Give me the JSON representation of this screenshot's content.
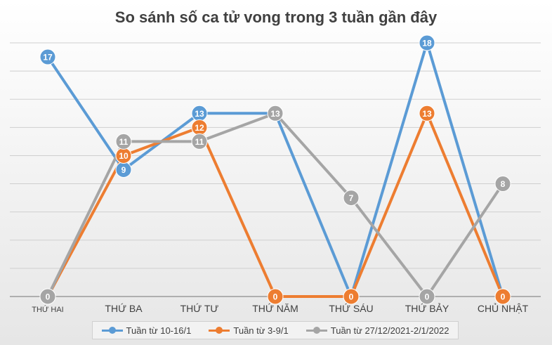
{
  "chart_data": {
    "type": "line",
    "title": "So sánh số ca tử vong trong 3 tuần gần đây",
    "categories": [
      "THỨ HAI",
      "THỨ BA",
      "THỨ TƯ",
      "THỨ NĂM",
      "THỨ SÁU",
      "THỨ BẢY",
      "CHỦ NHẬT"
    ],
    "series": [
      {
        "name": "Tuần từ 10-16/1",
        "color": "#5b9bd5",
        "values": [
          17,
          9,
          13,
          13,
          0,
          18,
          0
        ]
      },
      {
        "name": "Tuần từ 3-9/1",
        "color": "#ed7d31",
        "values": [
          0,
          10,
          12,
          0,
          0,
          13,
          0
        ]
      },
      {
        "name": "Tuần từ 27/12/2021-2/1/2022",
        "color": "#a5a5a5",
        "values": [
          0,
          11,
          11,
          13,
          7,
          0,
          8
        ]
      }
    ],
    "ylim": [
      0,
      18
    ],
    "gridlines": true,
    "data_labels": true,
    "legend_position": "bottom"
  }
}
